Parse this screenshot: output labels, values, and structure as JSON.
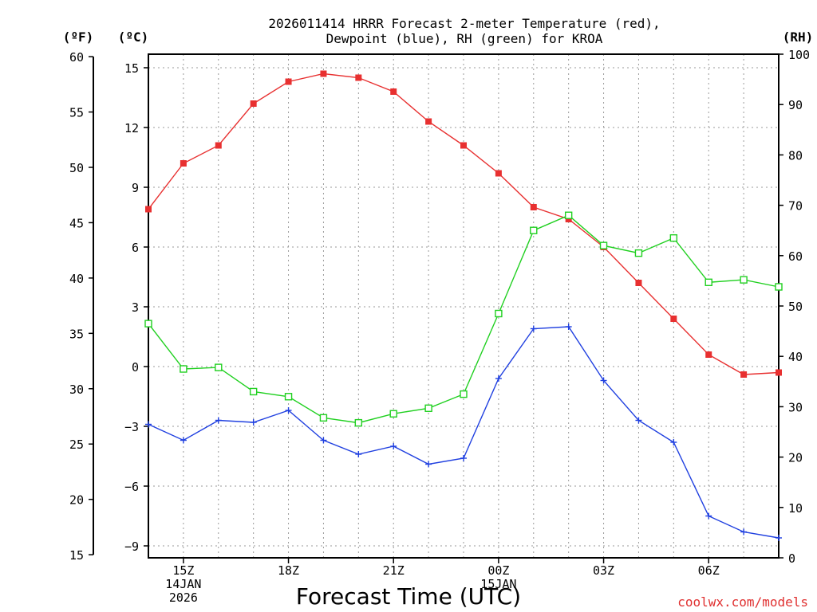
{
  "chart_data": {
    "type": "line",
    "title_lines": [
      "2026011414 HRRR Forecast 2-meter Temperature (red),",
      "Dewpoint (blue), RH (green) for KROA"
    ],
    "xlabel": "Forecast Time (UTC)",
    "credit": "coolwx.com/models",
    "units": {
      "left_outer": "(ºF)",
      "left_inner": "(ºC)",
      "right": "(RH)"
    },
    "x": [
      14,
      15,
      16,
      17,
      18,
      19,
      20,
      21,
      22,
      23,
      24,
      25,
      26,
      27,
      28,
      29,
      30,
      31,
      32
    ],
    "xlim": [
      14,
      32
    ],
    "x_ticks": [
      {
        "x": 15,
        "lines": [
          "15Z",
          "14JAN",
          "2026"
        ]
      },
      {
        "x": 18,
        "lines": [
          "18Z"
        ]
      },
      {
        "x": 21,
        "lines": [
          "21Z"
        ]
      },
      {
        "x": 24,
        "lines": [
          "00Z",
          "15JAN"
        ]
      },
      {
        "x": 27,
        "lines": [
          "03Z"
        ]
      },
      {
        "x": 30,
        "lines": [
          "06Z"
        ]
      }
    ],
    "y_celsius": {
      "lim": [
        -10,
        15.5
      ],
      "ticks": [
        15,
        12,
        9,
        6,
        3,
        0,
        -3,
        -6,
        -9
      ],
      "tick_labels": [
        "15",
        "12",
        "9",
        "6",
        "3",
        "0",
        "−3",
        "−6",
        "−9"
      ]
    },
    "y_fahrenheit": {
      "ticks": [
        60,
        55,
        50,
        45,
        40,
        35,
        30,
        25,
        20,
        15
      ]
    },
    "y_rh": {
      "lim": [
        0,
        100
      ],
      "ticks": [
        100,
        90,
        80,
        70,
        60,
        50,
        40,
        30,
        20,
        10,
        0
      ]
    },
    "series": [
      {
        "name": "2-meter Temperature",
        "axis": "celsius",
        "color": "#e83030",
        "marker": "filled-square",
        "values": [
          7.9,
          10.2,
          11.1,
          13.2,
          14.3,
          14.7,
          14.5,
          13.8,
          12.3,
          11.1,
          9.7,
          8.0,
          7.4,
          6.0,
          4.2,
          2.4,
          0.6,
          -0.4,
          -0.3
        ]
      },
      {
        "name": "Dewpoint",
        "axis": "celsius",
        "color": "#2040e0",
        "marker": "plus",
        "values": [
          -2.9,
          -3.7,
          -2.7,
          -2.8,
          -2.2,
          -3.7,
          -4.4,
          -4.0,
          -4.9,
          -4.6,
          -0.6,
          1.9,
          2.0,
          -0.7,
          -2.7,
          -3.8,
          -7.5,
          -8.3,
          -8.6
        ]
      },
      {
        "name": "RH",
        "axis": "rh",
        "color": "#20d020",
        "marker": "open-square",
        "values": [
          46.5,
          37.5,
          37.8,
          33.0,
          32.0,
          27.8,
          26.8,
          28.6,
          29.7,
          32.5,
          48.5,
          65.0,
          68.0,
          62.0,
          60.5,
          63.5,
          54.7,
          55.2,
          53.8
        ]
      }
    ]
  }
}
